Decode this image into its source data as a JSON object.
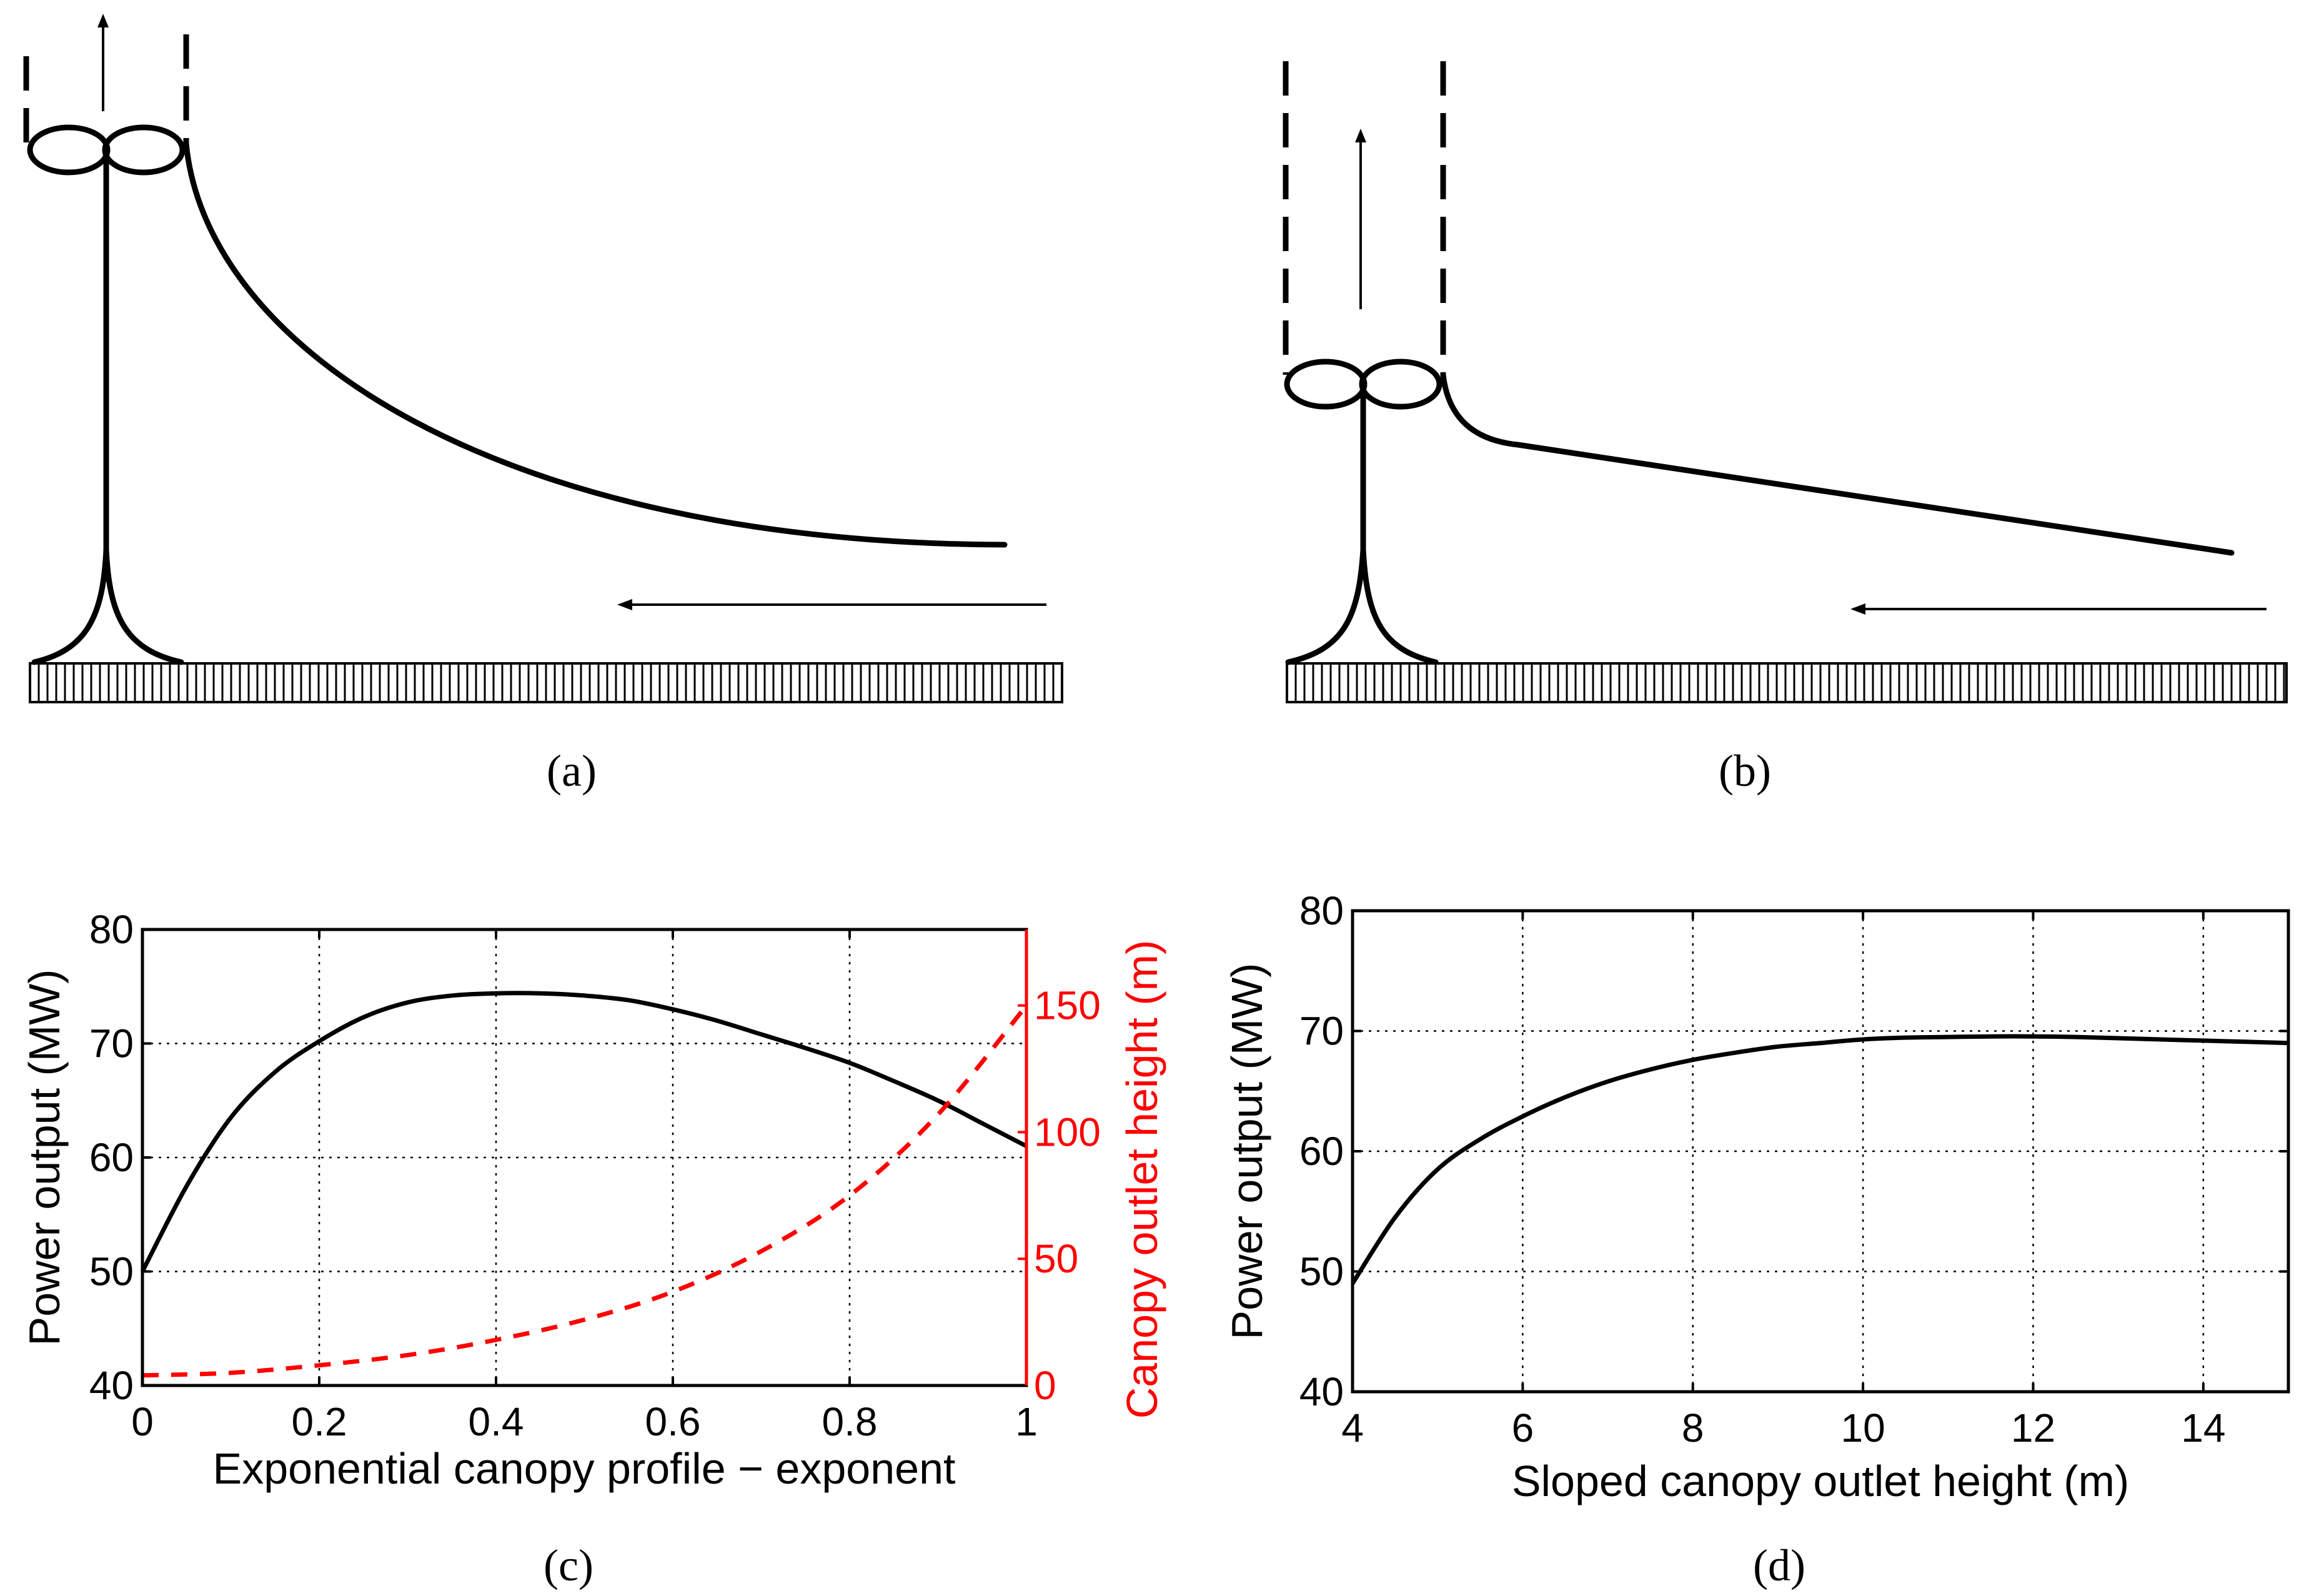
{
  "captions": {
    "a": "(a)",
    "b": "(b)",
    "c": "(c)",
    "d": "(d)"
  },
  "colors": {
    "primary": "#000000",
    "secondary": "#ff0000"
  },
  "chart_data": [
    {
      "id": "c",
      "type": "line",
      "xlabel": "Exponential canopy profile − exponent",
      "ylabel": "Power output (MW)",
      "y2label": "Canopy outlet height (m)",
      "xlim": [
        0,
        1
      ],
      "ylim": [
        40,
        80
      ],
      "y2lim": [
        0,
        180
      ],
      "xticks": [
        0,
        0.2,
        0.4,
        0.6,
        0.8,
        1
      ],
      "xtick_labels": [
        "0",
        "0.2",
        "0.4",
        "0.6",
        "0.8",
        "1"
      ],
      "yticks": [
        40,
        50,
        60,
        70,
        80
      ],
      "ytick_labels": [
        "40",
        "50",
        "60",
        "70",
        "80"
      ],
      "y2ticks": [
        0,
        50,
        100,
        150
      ],
      "y2tick_labels": [
        "0",
        "50",
        "100",
        "150"
      ],
      "grid": true,
      "series": [
        {
          "name": "Power output",
          "axis": "left",
          "style": "solid",
          "color": "#000000",
          "x": [
            0,
            0.05,
            0.1,
            0.15,
            0.2,
            0.25,
            0.3,
            0.35,
            0.4,
            0.45,
            0.5,
            0.55,
            0.6,
            0.65,
            0.7,
            0.75,
            0.8,
            0.85,
            0.9,
            0.95,
            1
          ],
          "y": [
            50,
            57.5,
            63.5,
            67.5,
            70.2,
            72.3,
            73.6,
            74.2,
            74.4,
            74.4,
            74.2,
            73.8,
            73.0,
            72.0,
            70.8,
            69.6,
            68.3,
            66.7,
            65.0,
            63.0,
            61.0
          ]
        },
        {
          "name": "Canopy outlet height",
          "axis": "right",
          "style": "dashed",
          "color": "#ff0000",
          "x": [
            0,
            0.1,
            0.2,
            0.3,
            0.4,
            0.5,
            0.6,
            0.7,
            0.8,
            0.9,
            1
          ],
          "y": [
            4,
            5,
            8,
            12,
            18,
            26,
            37,
            53,
            75,
            107,
            150
          ]
        }
      ]
    },
    {
      "id": "d",
      "type": "line",
      "xlabel": "Sloped canopy outlet height (m)",
      "ylabel": "Power output (MW)",
      "xlim": [
        4,
        15
      ],
      "ylim": [
        40,
        80
      ],
      "xticks": [
        4,
        6,
        8,
        10,
        12,
        14
      ],
      "xtick_labels": [
        "4",
        "6",
        "8",
        "10",
        "12",
        "14"
      ],
      "yticks": [
        40,
        50,
        60,
        70,
        80
      ],
      "ytick_labels": [
        "40",
        "50",
        "60",
        "70",
        "80"
      ],
      "grid": true,
      "series": [
        {
          "name": "Power output",
          "axis": "left",
          "style": "solid",
          "color": "#000000",
          "x": [
            4,
            4.5,
            5,
            5.5,
            6,
            6.5,
            7,
            7.5,
            8,
            8.5,
            9,
            9.5,
            10,
            10.5,
            11,
            11.5,
            12,
            12.5,
            13,
            13.5,
            14,
            14.5,
            15
          ],
          "y": [
            49,
            54.5,
            58.5,
            61.0,
            62.9,
            64.5,
            65.8,
            66.8,
            67.6,
            68.2,
            68.7,
            69.0,
            69.3,
            69.45,
            69.5,
            69.55,
            69.55,
            69.5,
            69.4,
            69.3,
            69.2,
            69.1,
            69.0
          ]
        }
      ]
    }
  ]
}
